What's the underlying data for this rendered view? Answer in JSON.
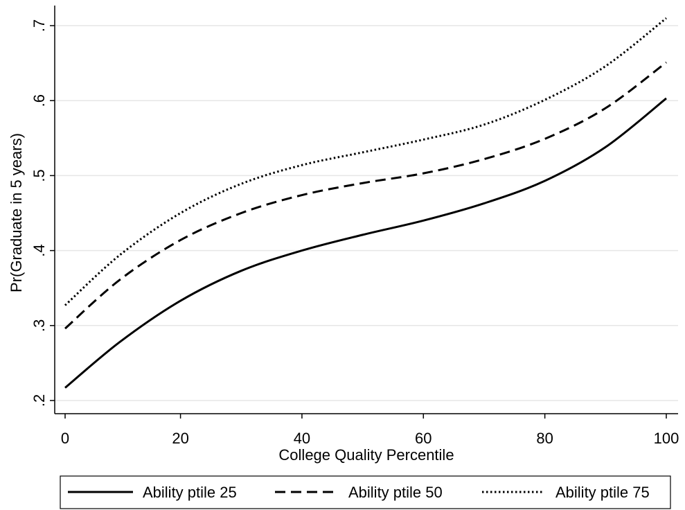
{
  "chart_data": {
    "type": "line",
    "title": "",
    "xlabel": "College Quality Percentile",
    "ylabel": "Pr(Graduate in 5 years)",
    "xlim": [
      0,
      100
    ],
    "ylim": [
      0.2,
      0.7
    ],
    "x_ticks": [
      0,
      20,
      40,
      60,
      80,
      100
    ],
    "x_tick_labels": [
      "0",
      "20",
      "40",
      "60",
      "80",
      "100"
    ],
    "y_ticks": [
      0.2,
      0.3,
      0.4,
      0.5,
      0.6,
      0.7
    ],
    "y_tick_labels": [
      ".2",
      ".3",
      ".4",
      ".5",
      ".6",
      ".7"
    ],
    "grid": true,
    "legend_position": "bottom",
    "x": [
      1,
      10,
      20,
      30,
      40,
      50,
      60,
      70,
      80,
      90,
      100
    ],
    "series": [
      {
        "name": "Ability ptile 25",
        "line_style": "solid",
        "values": [
          0.217,
          0.278,
          0.333,
          0.373,
          0.4,
          0.421,
          0.44,
          0.463,
          0.493,
          0.538,
          0.603
        ]
      },
      {
        "name": "Ability ptile 50",
        "line_style": "dashed",
        "values": [
          0.296,
          0.361,
          0.414,
          0.45,
          0.474,
          0.49,
          0.503,
          0.522,
          0.549,
          0.59,
          0.651
        ]
      },
      {
        "name": "Ability ptile 75",
        "line_style": "dotted",
        "values": [
          0.327,
          0.394,
          0.45,
          0.489,
          0.514,
          0.531,
          0.548,
          0.568,
          0.601,
          0.646,
          0.71
        ]
      }
    ],
    "colors": {
      "line": "#000000",
      "grid": "#e6e6e6",
      "axis": "#000000"
    }
  }
}
